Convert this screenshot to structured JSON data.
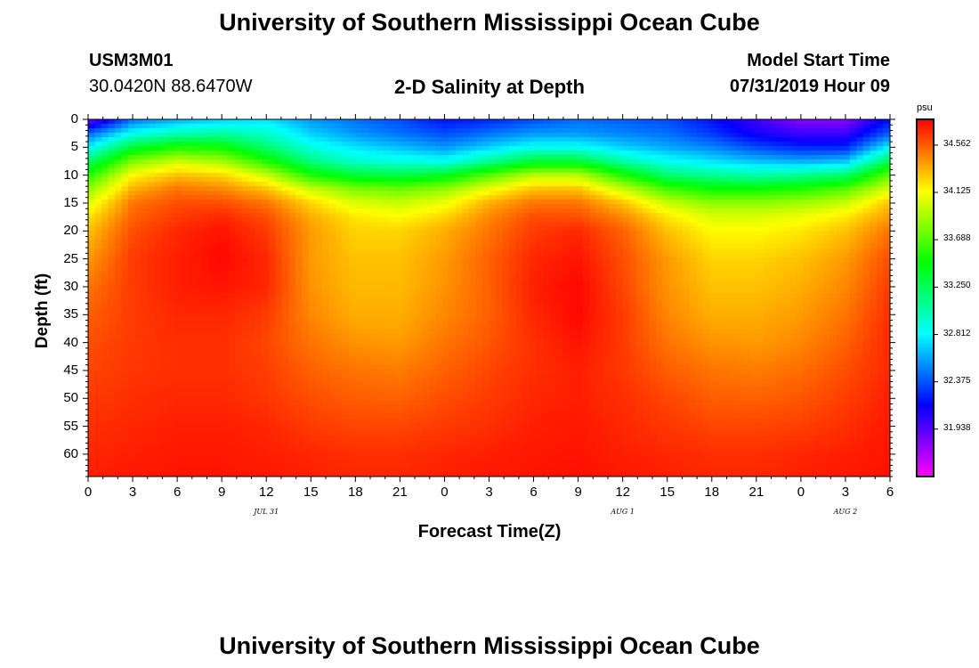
{
  "page": {
    "title_top": "University of Southern Mississippi Ocean Cube",
    "title_bottom": "University of Southern Mississippi Ocean Cube",
    "station_id": "USM3M01",
    "station_location": "30.0420N 88.6470W",
    "plot_title": "2-D Salinity at Depth",
    "model_start_label": "Model Start Time",
    "model_start_value": "07/31/2019 Hour 09"
  },
  "colorbar": {
    "unit": "psu",
    "min": 31.5,
    "max": 34.8,
    "tick_labels": [
      "34.562",
      "34.125",
      "33.688",
      "33.250",
      "32.812",
      "32.375",
      "31.938"
    ],
    "tick_values": [
      34.562,
      34.125,
      33.688,
      33.25,
      32.812,
      32.375,
      31.938
    ]
  },
  "chart_data": {
    "type": "heatmap",
    "title": "2-D Salinity at Depth",
    "xlabel": "Forecast Time(Z)",
    "ylabel": "Depth (ft)",
    "x_hours_range": [
      0,
      54
    ],
    "ylim": [
      0,
      64
    ],
    "y_reversed": true,
    "x_tick_labels": [
      "0",
      "3",
      "6",
      "9",
      "12",
      "15",
      "18",
      "21",
      "0",
      "3",
      "6",
      "9",
      "12",
      "15",
      "18",
      "21",
      "0",
      "3",
      "6"
    ],
    "y_tick_labels": [
      "0",
      "5",
      "10",
      "15",
      "20",
      "25",
      "30",
      "35",
      "40",
      "45",
      "50",
      "55",
      "60"
    ],
    "y_tick_values": [
      0,
      5,
      10,
      15,
      20,
      25,
      30,
      35,
      40,
      45,
      50,
      55,
      60
    ],
    "date_labels": [
      {
        "text": "JUL 31",
        "hour": 12
      },
      {
        "text": "AUG 1",
        "hour": 36
      },
      {
        "text": "AUG 2",
        "hour": 51
      }
    ],
    "columns_hours": [
      0,
      3,
      6,
      9,
      12,
      15,
      18,
      21,
      24,
      27,
      30,
      33,
      36,
      39,
      42,
      45,
      48,
      51,
      54
    ],
    "rows_depth_ft": [
      0,
      2.5,
      5,
      7.5,
      10,
      12.5,
      15,
      17.5,
      20,
      25,
      30,
      35,
      40,
      45,
      50,
      55,
      60,
      64
    ],
    "salinity_psu": [
      [
        31.85,
        32.45,
        32.6,
        32.7,
        32.75,
        32.55,
        32.45,
        32.35,
        32.2,
        32.25,
        32.35,
        32.45,
        32.4,
        32.35,
        32.2,
        32.0,
        31.8,
        31.8,
        32.2
      ],
      [
        32.4,
        32.85,
        33.0,
        33.05,
        32.95,
        32.7,
        32.55,
        32.45,
        32.35,
        32.45,
        32.55,
        32.55,
        32.5,
        32.45,
        32.3,
        32.1,
        32.0,
        32.0,
        32.4
      ],
      [
        32.8,
        33.35,
        33.55,
        33.5,
        33.2,
        32.9,
        32.75,
        32.65,
        32.55,
        32.7,
        32.85,
        32.85,
        32.7,
        32.6,
        32.5,
        32.35,
        32.25,
        32.25,
        32.8
      ],
      [
        33.2,
        33.8,
        34.0,
        33.9,
        33.55,
        33.15,
        32.95,
        32.9,
        32.85,
        33.1,
        33.35,
        33.35,
        33.05,
        32.85,
        32.75,
        32.65,
        32.6,
        32.65,
        33.3
      ],
      [
        33.55,
        34.15,
        34.3,
        34.25,
        34.0,
        33.55,
        33.35,
        33.3,
        33.4,
        33.7,
        33.95,
        33.95,
        33.55,
        33.2,
        33.1,
        33.05,
        33.1,
        33.2,
        33.75
      ],
      [
        33.85,
        34.35,
        34.5,
        34.45,
        34.3,
        34.0,
        33.8,
        33.75,
        33.85,
        34.1,
        34.3,
        34.3,
        34.0,
        33.65,
        33.5,
        33.5,
        33.55,
        33.7,
        34.05
      ],
      [
        34.05,
        34.5,
        34.6,
        34.6,
        34.5,
        34.25,
        34.05,
        34.0,
        34.1,
        34.35,
        34.5,
        34.5,
        34.3,
        34.0,
        33.85,
        33.85,
        33.9,
        34.0,
        34.3
      ],
      [
        34.2,
        34.55,
        34.65,
        34.7,
        34.6,
        34.35,
        34.2,
        34.15,
        34.25,
        34.45,
        34.6,
        34.6,
        34.45,
        34.2,
        34.05,
        34.05,
        34.1,
        34.2,
        34.4
      ],
      [
        34.3,
        34.6,
        34.7,
        34.75,
        34.65,
        34.4,
        34.25,
        34.25,
        34.35,
        34.5,
        34.65,
        34.7,
        34.55,
        34.3,
        34.15,
        34.15,
        34.2,
        34.3,
        34.5
      ],
      [
        34.4,
        34.65,
        34.72,
        34.78,
        34.7,
        34.4,
        34.3,
        34.3,
        34.4,
        34.55,
        34.7,
        34.75,
        34.6,
        34.4,
        34.25,
        34.25,
        34.3,
        34.4,
        34.6
      ],
      [
        34.5,
        34.65,
        34.72,
        34.75,
        34.7,
        34.42,
        34.32,
        34.32,
        34.42,
        34.55,
        34.72,
        34.78,
        34.62,
        34.42,
        34.3,
        34.3,
        34.35,
        34.45,
        34.65
      ],
      [
        34.55,
        34.65,
        34.7,
        34.7,
        34.65,
        34.45,
        34.35,
        34.35,
        34.45,
        34.55,
        34.7,
        34.78,
        34.65,
        34.45,
        34.35,
        34.35,
        34.4,
        34.5,
        34.68
      ],
      [
        34.6,
        34.65,
        34.68,
        34.68,
        34.62,
        34.5,
        34.42,
        34.4,
        34.5,
        34.58,
        34.68,
        34.75,
        34.65,
        34.5,
        34.42,
        34.4,
        34.45,
        34.55,
        34.7
      ],
      [
        34.62,
        34.66,
        34.68,
        34.68,
        34.64,
        34.55,
        34.5,
        34.48,
        34.55,
        34.62,
        34.68,
        34.72,
        34.66,
        34.56,
        34.5,
        34.48,
        34.52,
        34.6,
        34.7
      ],
      [
        34.65,
        34.68,
        34.7,
        34.7,
        34.66,
        34.6,
        34.56,
        34.55,
        34.6,
        34.65,
        34.7,
        34.72,
        34.68,
        34.62,
        34.56,
        34.55,
        34.58,
        34.64,
        34.72
      ],
      [
        34.68,
        34.7,
        34.72,
        34.72,
        34.7,
        34.65,
        34.62,
        34.62,
        34.65,
        34.68,
        34.72,
        34.74,
        34.7,
        34.66,
        34.62,
        34.62,
        34.64,
        34.68,
        34.74
      ],
      [
        34.7,
        34.72,
        34.74,
        34.74,
        34.72,
        34.7,
        34.68,
        34.68,
        34.7,
        34.72,
        34.74,
        34.75,
        34.72,
        34.7,
        34.68,
        34.68,
        34.7,
        34.72,
        34.75
      ],
      [
        34.72,
        34.74,
        34.75,
        34.75,
        34.74,
        34.72,
        34.7,
        34.7,
        34.72,
        34.74,
        34.75,
        34.76,
        34.74,
        34.72,
        34.7,
        34.7,
        34.72,
        34.74,
        34.76
      ]
    ]
  }
}
